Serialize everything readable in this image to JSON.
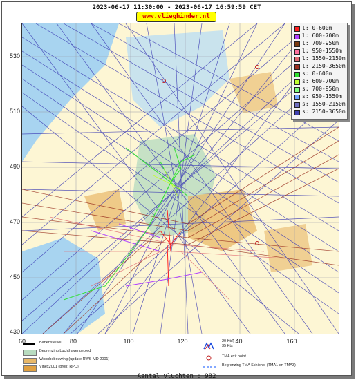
{
  "header": {
    "title": "2023-06-17 11:30:00 - 2023-06-17 16:59:59 CET",
    "site": "www.vlieghinder.nl"
  },
  "axes": {
    "y_ticks": [
      "530",
      "510",
      "490",
      "470",
      "450",
      "430"
    ],
    "x_ticks": [
      "60",
      "80",
      "100",
      "120",
      "140",
      "160"
    ]
  },
  "legend": {
    "items": [
      {
        "label": "l: 0-600m",
        "color": "#ff2020"
      },
      {
        "label": "l: 600-700m",
        "color": "#b040ff"
      },
      {
        "label": "l: 700-950m",
        "color": "#7a3a10"
      },
      {
        "label": "l: 950-1550m",
        "color": "#ff70a0"
      },
      {
        "label": "l: 1550-2150m",
        "color": "#e06870"
      },
      {
        "label": "l: 2150-3650m",
        "color": "#9a3020"
      },
      {
        "label": "s: 0-600m",
        "color": "#30e030"
      },
      {
        "label": "s: 600-700m",
        "color": "#c0ff30"
      },
      {
        "label": "s: 700-950m",
        "color": "#80ff80"
      },
      {
        "label": "s: 950-1550m",
        "color": "#70a0ff"
      },
      {
        "label": "s: 1550-2150m",
        "color": "#7070c0"
      },
      {
        "label": "s: 2150-3650m",
        "color": "#4040b0"
      }
    ]
  },
  "bottom_legend": {
    "runway": "Banenstelsel",
    "boundary": "Begrenzing Luchthavengebied",
    "housing": "Woonbebouwing (update RWS-MD 2001)",
    "vinex": "Vinex2001 (bron: RPD)",
    "wind_strong": "20 Kts",
    "wind_weak": "35 Kts",
    "tma_exit": "TMA exit point",
    "tma_boundary": "Begrenzing TMA Schiphol  (TMA1 en TMA3)"
  },
  "footer": {
    "count_text": "Aantal vluchten : 982"
  },
  "colors": {
    "water": "#a8d4f0",
    "land": "#fdf6d4",
    "boundary_green": "#b8dcc0",
    "housing": "#e8b868"
  }
}
